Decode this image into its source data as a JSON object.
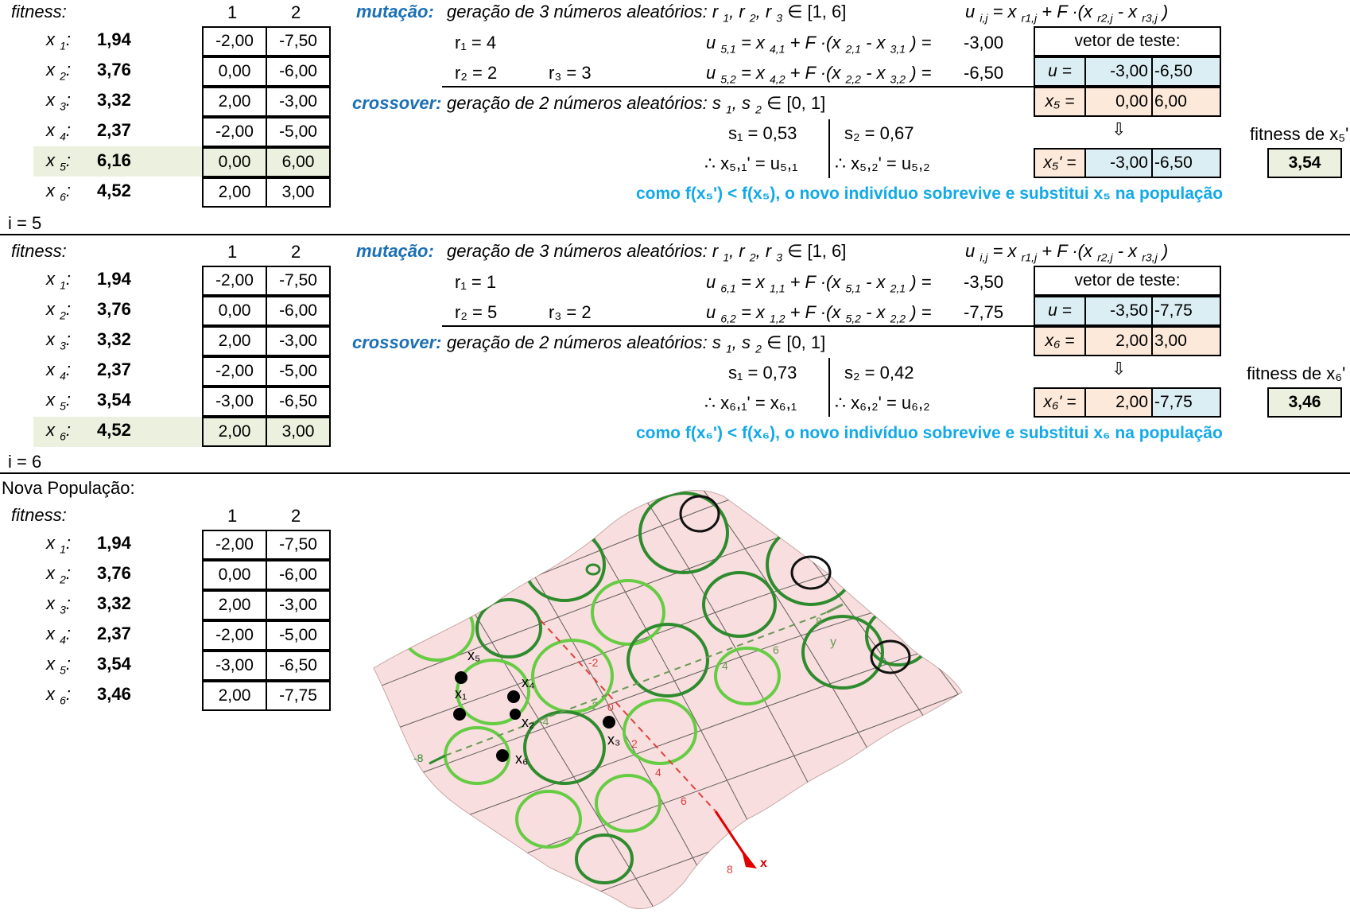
{
  "fitness_label": "fitness:",
  "col_headers": [
    "1",
    "2"
  ],
  "block1": {
    "i_label": "i =  5",
    "rows": [
      {
        "name": "x",
        "sub": "1",
        "fit": "1,94",
        "c1": "-2,00",
        "c2": "-7,50"
      },
      {
        "name": "x",
        "sub": "2",
        "fit": "3,76",
        "c1": "0,00",
        "c2": "-6,00"
      },
      {
        "name": "x",
        "sub": "3",
        "fit": "3,32",
        "c1": "2,00",
        "c2": "-3,00"
      },
      {
        "name": "x",
        "sub": "4",
        "fit": "2,37",
        "c1": "-2,00",
        "c2": "-5,00"
      },
      {
        "name": "x",
        "sub": "5",
        "fit": "6,16",
        "c1": "0,00",
        "c2": "6,00"
      },
      {
        "name": "x",
        "sub": "6",
        "fit": "4,52",
        "c1": "2,00",
        "c2": "3,00"
      }
    ],
    "mutation_label": "mutação:",
    "mutation_text": "geração de 3 números aleatórios: r",
    "r_range": "∈ [1, 6]",
    "formula_u": "u",
    "r1": "r₁ = 4",
    "r2": "r₂ = 2",
    "r3": "r₃ = 3",
    "u1_expr": "u",
    "u1_val": "-3,00",
    "u2_val": "-6,50",
    "crossover_label": "crossover:",
    "crossover_text": "geração de 2 números aleatórios: s",
    "s_range": "∈ [0, 1]",
    "s1": "s₁ = 0,53",
    "s2": "s₂ = 0,67",
    "sel1": "∴ x₅,₁' = u₅,₁",
    "sel2": "∴ x₅,₂' = u₅,₂",
    "test_vector_label": "vetor de teste:",
    "u_label": "u  =",
    "u_c1": "-3,00",
    "u_c2": "-6,50",
    "x_label": "x₅ =",
    "x_c1": "0,00",
    "x_c2": "6,00",
    "xp_label": "x₅' =",
    "xp_c1": "-3,00",
    "xp_c2": "-6,50",
    "arrow": "⇩",
    "fitness_of": "fitness de x₅'",
    "fitness_new": "3,54",
    "conclusion": "como f(x₅') < f(x₅), o novo indivíduo sobrevive e substitui x₅ na população"
  },
  "block2": {
    "i_label": "i =  6",
    "rows": [
      {
        "name": "x",
        "sub": "1",
        "fit": "1,94",
        "c1": "-2,00",
        "c2": "-7,50"
      },
      {
        "name": "x",
        "sub": "2",
        "fit": "3,76",
        "c1": "0,00",
        "c2": "-6,00"
      },
      {
        "name": "x",
        "sub": "3",
        "fit": "3,32",
        "c1": "2,00",
        "c2": "-3,00"
      },
      {
        "name": "x",
        "sub": "4",
        "fit": "2,37",
        "c1": "-2,00",
        "c2": "-5,00"
      },
      {
        "name": "x",
        "sub": "5",
        "fit": "3,54",
        "c1": "-3,00",
        "c2": "-6,50"
      },
      {
        "name": "x",
        "sub": "6",
        "fit": "4,52",
        "c1": "2,00",
        "c2": "3,00"
      }
    ],
    "r1": "r₁ = 1",
    "r2": "r₂ = 5",
    "r3": "r₃ = 2",
    "u1_val": "-3,50",
    "u2_val": "-7,75",
    "s1": "s₁ = 0,73",
    "s2": "s₂ = 0,42",
    "sel1": "∴ x₆,₁' = x₆,₁",
    "sel2": "∴ x₆,₂' = u₆,₂",
    "u_c1": "-3,50",
    "u_c2": "-7,75",
    "x_label": "x₆ =",
    "x_c1": "2,00",
    "x_c2": "3,00",
    "xp_label": "x₆' =",
    "xp_c1": "2,00",
    "xp_c2": "-7,75",
    "fitness_of": "fitness de x₆'",
    "fitness_new": "3,46",
    "conclusion": "como f(x₆') < f(x₆), o novo indivíduo sobrevive e substitui x₆ na população"
  },
  "block3": {
    "title": "Nova População:",
    "rows": [
      {
        "name": "x",
        "sub": "1",
        "fit": "1,94",
        "c1": "-2,00",
        "c2": "-7,50"
      },
      {
        "name": "x",
        "sub": "2",
        "fit": "3,76",
        "c1": "0,00",
        "c2": "-6,00"
      },
      {
        "name": "x",
        "sub": "3",
        "fit": "3,32",
        "c1": "2,00",
        "c2": "-3,00"
      },
      {
        "name": "x",
        "sub": "4",
        "fit": "2,37",
        "c1": "-2,00",
        "c2": "-5,00"
      },
      {
        "name": "x",
        "sub": "5",
        "fit": "3,54",
        "c1": "-3,00",
        "c2": "-6,50"
      },
      {
        "name": "x",
        "sub": "6",
        "fit": "3,46",
        "c1": "2,00",
        "c2": "-7,75"
      }
    ]
  },
  "plot": {
    "points": [
      "x₁",
      "x₂",
      "x₃",
      "x₄",
      "x₅",
      "x₆"
    ],
    "x_axis_label": "x",
    "y_axis_label": "y",
    "ticks_red": [
      "-2",
      "0",
      "2",
      "4",
      "6",
      "8"
    ],
    "ticks_green": [
      "-8",
      "-4",
      "-2",
      "4",
      "6",
      "8"
    ]
  }
}
